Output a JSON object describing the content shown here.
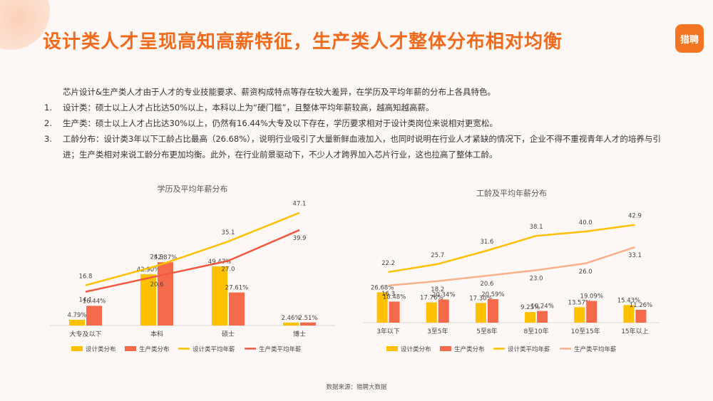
{
  "title": "设计类人才呈现高知高薪特征，生产类人才整体分布相对均衡",
  "logo_text": "猎聘",
  "intro": "芯片设计&生产类人才由于人才的专业技能要求、薪资构成特点等存在较大差异，在学历及平均年薪的分布上各具特色。",
  "points": [
    {
      "num": "1.",
      "text": "设计类：硕士以上人才占比达50%以上，本科以上为“硬门槛”，且整体平均年薪较高，越高知越高薪。"
    },
    {
      "num": "2.",
      "text": "生产类：硕士以上人才占比达30%以上，仍然有16.44%大专及以下存在，学历要求相对于设计类岗位来说相对更宽松。"
    },
    {
      "num": "3.",
      "text": "工龄分布：设计类3年以下工龄占比最高（26.68%），说明行业吸引了大量新鲜血液加入，也同时说明在行业人才紧缺的情况下，企业不得不重视青年人才的培养与引进；生产类相对来说工龄分布更加均衡。此外，在行业前景驱动下，不少人才跨界加入芯片行业，这也拉高了整体工龄。"
    }
  ],
  "source": "数据来源：猎聘大数据",
  "colors": {
    "design_bar": "#ffc000",
    "prod_bar": "#f46a4b",
    "design_line": "#ffc000",
    "prod_line_1": "#f4573f",
    "prod_line_2": "#f9b08b"
  },
  "chart_data": [
    {
      "type": "bar",
      "title": "学历及平均年薪分布",
      "categories": [
        "大专及以下",
        "本科",
        "硕士",
        "博士"
      ],
      "series": [
        {
          "name": "设计类分布",
          "kind": "bar",
          "values": [
            4.79,
            42.9,
            49.47,
            2.46
          ],
          "labels": [
            "4.79%",
            "42.90%",
            "49.47%",
            "2.46%"
          ],
          "color": "#ffc000"
        },
        {
          "name": "生产类分布",
          "kind": "bar",
          "values": [
            16.44,
            52.87,
            27.61,
            2.51
          ],
          "labels": [
            "16.44%",
            "52.87%",
            "27.61%",
            "2.51%"
          ],
          "color": "#f46a4b"
        },
        {
          "name": "设计类平均年薪",
          "kind": "line",
          "values": [
            16.8,
            24.9,
            35.1,
            47.1
          ],
          "color": "#ffc000"
        },
        {
          "name": "生产类平均年薪",
          "kind": "line",
          "values": [
            14.1,
            20.6,
            27.0,
            39.9
          ],
          "color": "#f4573f"
        }
      ],
      "bar_ylim": [
        0,
        100
      ],
      "line_ylim": [
        0,
        50
      ],
      "legend_position": "bottom"
    },
    {
      "type": "bar",
      "title": "工龄及平均年薪分布",
      "categories": [
        "3年以下",
        "3至5年",
        "5至8年",
        "8至10年",
        "10至15年",
        "15年以上"
      ],
      "series": [
        {
          "name": "设计类分布",
          "kind": "bar",
          "values": [
            26.68,
            17.76,
            17.3,
            9.25,
            13.57,
            15.43
          ],
          "labels": [
            "26.68%",
            "17.76%",
            "17.30%",
            "9.25%",
            "13.57%",
            "15.43%"
          ],
          "color": "#ffc000"
        },
        {
          "name": "生产类分布",
          "kind": "bar",
          "values": [
            18.48,
            20.34,
            20.59,
            10.24,
            19.09,
            11.26
          ],
          "labels": [
            "18.48%",
            "20.34%",
            "20.59%",
            "10.24%",
            "19.09%",
            "11.26%"
          ],
          "color": "#f46a4b"
        },
        {
          "name": "设计类平均年薪",
          "kind": "line",
          "values": [
            22.2,
            25.7,
            31.6,
            38.1,
            40.0,
            42.9
          ],
          "color": "#ffc000"
        },
        {
          "name": "生产类平均年薪",
          "kind": "line",
          "values": [
            16.3,
            18.2,
            20.6,
            23.0,
            26.0,
            33.1
          ],
          "color": "#f9b08b"
        }
      ],
      "bar_ylim": [
        0,
        100
      ],
      "line_ylim": [
        0,
        50
      ],
      "legend_position": "bottom"
    }
  ]
}
